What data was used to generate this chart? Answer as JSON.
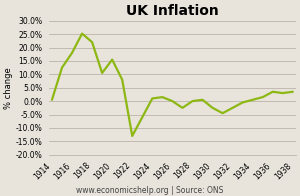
{
  "years": [
    1914,
    1915,
    1916,
    1917,
    1918,
    1919,
    1920,
    1921,
    1922,
    1923,
    1924,
    1925,
    1926,
    1927,
    1928,
    1929,
    1930,
    1931,
    1932,
    1933,
    1934,
    1935,
    1936,
    1937,
    1938
  ],
  "values": [
    0.5,
    12.5,
    18.0,
    25.2,
    22.0,
    10.5,
    15.5,
    8.0,
    -13.0,
    -6.0,
    1.0,
    1.5,
    0.0,
    -2.5,
    0.0,
    0.5,
    -2.5,
    -4.5,
    -2.5,
    -0.5,
    0.5,
    1.5,
    3.5,
    3.0,
    3.5
  ],
  "line_color": "#8DB814",
  "title": "UK Inflation",
  "ylabel": "% change",
  "ylim": [
    -20.0,
    30.0
  ],
  "yticks": [
    -20.0,
    -15.0,
    -10.0,
    -5.0,
    0.0,
    5.0,
    10.0,
    15.0,
    20.0,
    25.0,
    30.0
  ],
  "footnote": "www.economicshelp.org | Source: ONS",
  "bg_color": "#e8e4dc",
  "plot_bg_color": "#e8e4dc",
  "grid_color": "#b0aaa0",
  "title_fontsize": 10,
  "label_fontsize": 6,
  "tick_fontsize": 5.5,
  "footnote_fontsize": 5.5,
  "linewidth": 1.6
}
